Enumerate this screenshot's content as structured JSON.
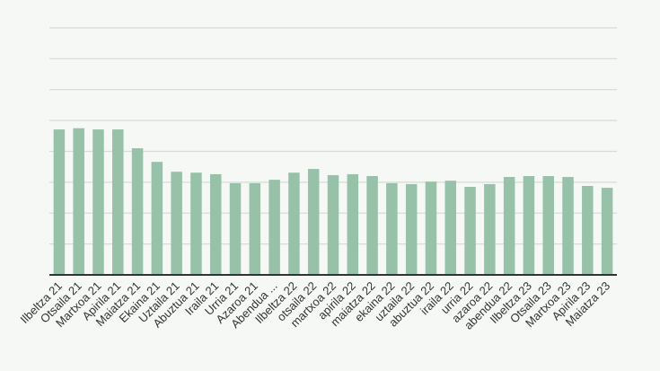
{
  "chart_data": {
    "type": "bar",
    "title": "",
    "xlabel": "",
    "ylabel": "",
    "y_tick_labels_shown": false,
    "ylim": [
      0,
      8
    ],
    "grid": true,
    "legend": "none",
    "bar_color": "#97c1a8",
    "categories": [
      "Ilbeltza 21",
      "Otsaila 21",
      "Martxoa 21",
      "Apirila 21",
      "Maiatza 21",
      "Ekaina 21",
      "Uztaila 21",
      "Abuztua 21",
      "Iraila 21",
      "Urria 21",
      "Azaroa 21",
      "Abendua ...",
      "Ilbeltza 22",
      "otsaila 22",
      "martxoa 22",
      "apirila 22",
      "maiatza 22",
      "ekaina 22",
      "uztaila 22",
      "abuztua 22",
      "iraila 22",
      "urria 22",
      "azaroa 22",
      "abendua 22",
      "Ilbeltza 23",
      "Otsaila 23",
      "Martxoa 23",
      "Apirila 23",
      "Maiatza 23"
    ],
    "values": [
      4.71,
      4.75,
      4.71,
      4.71,
      4.1,
      3.66,
      3.34,
      3.31,
      3.26,
      2.97,
      2.97,
      3.08,
      3.31,
      3.43,
      3.23,
      3.26,
      3.2,
      2.97,
      2.94,
      3.02,
      3.05,
      2.85,
      2.94,
      3.17,
      3.2,
      3.2,
      3.17,
      2.88,
      2.82
    ]
  }
}
